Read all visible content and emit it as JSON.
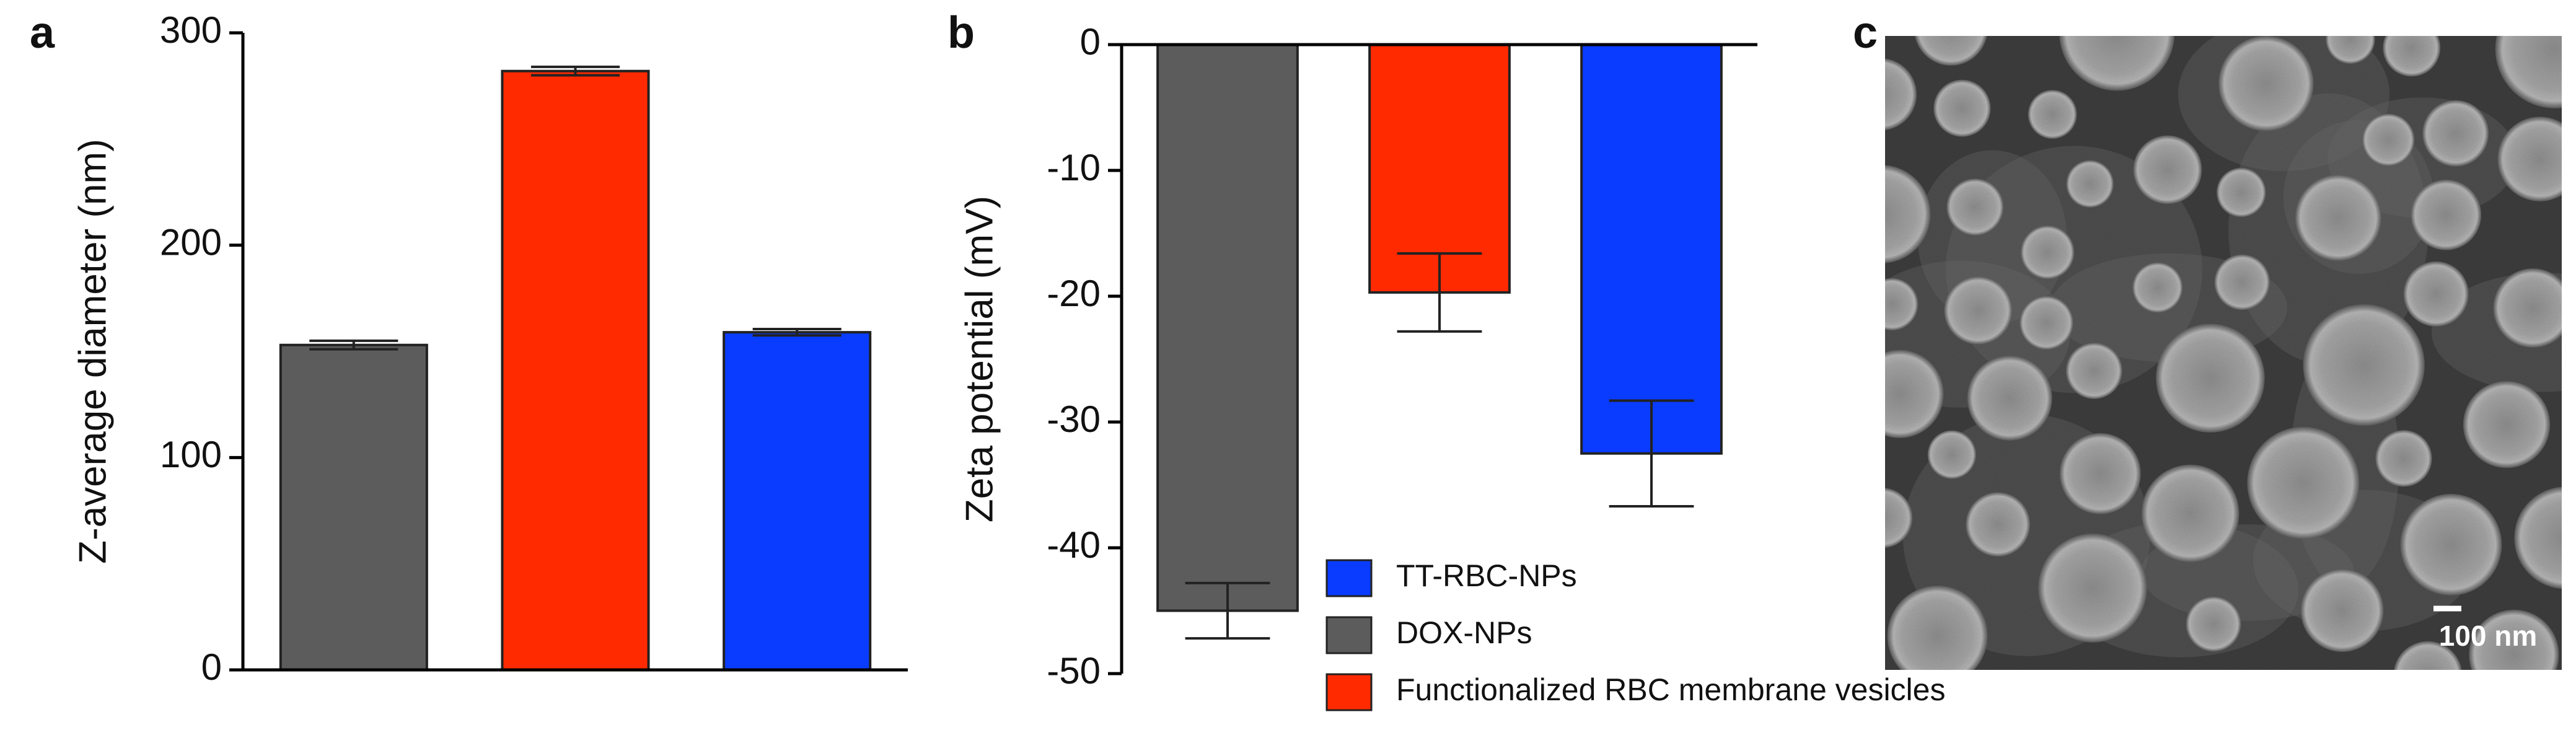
{
  "chart_data": [
    {
      "type": "bar",
      "panel_label": "a",
      "y_label": "Z-average diameter (nm)",
      "categories": [
        null,
        null,
        null
      ],
      "values": [
        153,
        282,
        159
      ],
      "errors": [
        2,
        2,
        1.5
      ],
      "colors": [
        "#5c5c5c",
        "#ff2a00",
        "#0a3cff"
      ],
      "ylim": [
        0,
        300
      ],
      "yticks": [
        0,
        100,
        200,
        300
      ]
    },
    {
      "type": "bar",
      "panel_label": "b",
      "y_label": "Zeta potential (mV)",
      "categories": [
        null,
        null,
        null
      ],
      "values": [
        -45,
        -19.7,
        -32.5
      ],
      "errors": [
        2.2,
        3.1,
        4.2
      ],
      "colors": [
        "#5c5c5c",
        "#ff2a00",
        "#0a3cff"
      ],
      "ylim": [
        -50,
        0
      ],
      "yticks": [
        0,
        -10,
        -20,
        -30,
        -40,
        -50
      ],
      "legend": [
        {
          "name": "TT-RBC-NPs",
          "color": "#0a3cff"
        },
        {
          "name": "DOX-NPs",
          "color": "#5c5c5c"
        },
        {
          "name": "Functionalized RBC membrane vesicles",
          "color": "#ff2a00"
        }
      ]
    }
  ],
  "image_panel": {
    "panel_label": "c",
    "scale_bar_label": "100 nm"
  }
}
